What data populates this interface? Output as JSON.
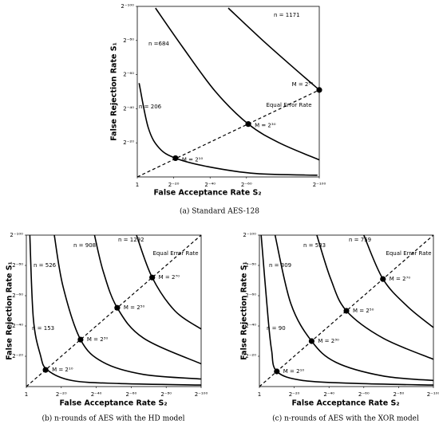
{
  "chart_data": [
    {
      "type": "line",
      "caption": "(a)  Standard AES-128",
      "xlabel": "False Acceptance Rate S₂",
      "ylabel": "False Rejection Rate S₁",
      "xlim": [
        0,
        -100
      ],
      "ylim": [
        0,
        -100
      ],
      "xticks": [
        {
          "value": 0,
          "label": "1"
        },
        {
          "value": -20,
          "label": "2⁻²⁰"
        },
        {
          "value": -40,
          "label": "2⁻⁴⁰"
        },
        {
          "value": -60,
          "label": "2⁻⁶⁰"
        },
        {
          "value": -100,
          "label": "2⁻¹⁰⁰"
        }
      ],
      "yticks": [
        {
          "value": -20,
          "label": "2⁻²⁰"
        },
        {
          "value": -40,
          "label": "2⁻⁴⁰"
        },
        {
          "value": -60,
          "label": "2⁻⁶⁰"
        },
        {
          "value": -80,
          "label": "2⁻⁸⁰"
        },
        {
          "value": -100,
          "label": "2⁻¹⁰⁰"
        }
      ],
      "series": [
        {
          "name": "n = 206",
          "color": "#000000",
          "x": [
            -1,
            -6,
            -12,
            -21,
            -39,
            -65,
            -99
          ],
          "y": [
            -55,
            -29,
            -17,
            -11,
            -6,
            -2,
            -1
          ]
        },
        {
          "name": "n =684",
          "color": "#000000",
          "x": [
            -10,
            -25,
            -43,
            -61,
            -78,
            -100
          ],
          "y": [
            -99,
            -76,
            -50,
            -31,
            -20,
            -10
          ]
        },
        {
          "name": "n = 1171",
          "color": "#000000",
          "x": [
            -50,
            -69,
            -87,
            -100
          ],
          "y": [
            -99,
            -80,
            -63,
            -51
          ]
        }
      ],
      "equal_error_line": {
        "label": "Equal Error Rate",
        "color": "#000000",
        "x": [
          0,
          -100
        ],
        "y": [
          0,
          -51
        ]
      },
      "markers": {
        "color": "#000000",
        "x": [
          -21,
          -61,
          -100
        ],
        "y": [
          -11,
          -31,
          -51
        ],
        "labels": [
          "M = 2¹⁰",
          "M = 2³⁰",
          "M = 2⁵⁰"
        ]
      }
    },
    {
      "type": "line",
      "caption": "(b)  n-rounds of AES with the HD model",
      "xlabel": "False Acceptance Rate S₂",
      "ylabel": "False Rejection Rate S₁",
      "xlim": [
        0,
        -100
      ],
      "ylim": [
        0,
        -100
      ],
      "xticks": [
        {
          "value": 0,
          "label": "1"
        },
        {
          "value": -20,
          "label": "2⁻²⁰"
        },
        {
          "value": -40,
          "label": "2⁻⁴⁰"
        },
        {
          "value": -60,
          "label": "2⁻⁶⁰"
        },
        {
          "value": -80,
          "label": "2⁻⁸⁰"
        },
        {
          "value": -100,
          "label": "2⁻¹⁰⁰"
        }
      ],
      "yticks": [
        {
          "value": -20,
          "label": "2⁻²⁰"
        },
        {
          "value": -40,
          "label": "2⁻⁴⁰"
        },
        {
          "value": -60,
          "label": "2⁻⁶⁰"
        },
        {
          "value": -80,
          "label": "2⁻⁸⁰"
        },
        {
          "value": -100,
          "label": "2⁻¹⁰⁰"
        }
      ],
      "series": [
        {
          "name": "n = 153",
          "color": "#000000",
          "x": [
            -2,
            -4,
            -8,
            -12,
            -26,
            -53,
            -100
          ],
          "y": [
            -100,
            -45,
            -21,
            -11,
            -4,
            -2,
            -1
          ]
        },
        {
          "name": "n = 526",
          "color": "#000000",
          "x": [
            -16,
            -21,
            -31,
            -44,
            -67,
            -100
          ],
          "y": [
            -100,
            -66,
            -31,
            -16,
            -8,
            -5
          ]
        },
        {
          "name": "n = 908",
          "color": "#000000",
          "x": [
            -39,
            -44,
            -52,
            -67,
            -100
          ],
          "y": [
            -100,
            -76,
            -52,
            -32,
            -15
          ]
        },
        {
          "name": "n = 1292",
          "color": "#000000",
          "x": [
            -63,
            -72,
            -85,
            -100
          ],
          "y": [
            -100,
            -72,
            -50,
            -38
          ]
        }
      ],
      "equal_error_line": {
        "label": "Equal Error Rate",
        "color": "#000000",
        "x": [
          0,
          -100
        ],
        "y": [
          0,
          -100
        ]
      },
      "markers": {
        "color": "#000000",
        "x": [
          -11,
          -31,
          -52,
          -72
        ],
        "y": [
          -11,
          -31,
          -52,
          -72
        ],
        "labels": [
          "M = 2¹⁰",
          "M = 2³⁰",
          "M = 2⁵⁰",
          "M = 2⁷⁰"
        ]
      }
    },
    {
      "type": "line",
      "caption": "(c)  n-rounds of AES with the XOR model",
      "xlabel": "False Acceptance Rate S₂",
      "ylabel": "False Rejection Rate S₁",
      "xlim": [
        0,
        -100
      ],
      "ylim": [
        0,
        -100
      ],
      "xticks": [
        {
          "value": 0,
          "label": "1"
        },
        {
          "value": -20,
          "label": "2⁻²⁰"
        },
        {
          "value": -40,
          "label": "2⁻⁴⁰"
        },
        {
          "value": -60,
          "label": "2⁻⁶⁰"
        },
        {
          "value": -80,
          "label": "2⁻⁸⁰"
        },
        {
          "value": -100,
          "label": "2⁻¹⁰⁰"
        }
      ],
      "yticks": [
        {
          "value": -20,
          "label": "2⁻²⁰"
        },
        {
          "value": -40,
          "label": "2⁻⁴⁰"
        },
        {
          "value": -60,
          "label": "2⁻⁶⁰"
        },
        {
          "value": -80,
          "label": "2⁻⁸⁰"
        },
        {
          "value": -100,
          "label": "2⁻¹⁰⁰"
        }
      ],
      "series": [
        {
          "name": "n = 90",
          "color": "#000000",
          "x": [
            -1,
            -5,
            -7,
            -10,
            -25,
            -57,
            -100
          ],
          "y": [
            -100,
            -45,
            -24,
            -10,
            -4,
            -2,
            -1
          ]
        },
        {
          "name": "n = 309",
          "color": "#000000",
          "x": [
            -9,
            -18,
            -30,
            -44,
            -71,
            -100
          ],
          "y": [
            -100,
            -55,
            -30,
            -16,
            -7,
            -4
          ]
        },
        {
          "name": "n = 533",
          "color": "#000000",
          "x": [
            -33,
            -41,
            -50,
            -71,
            -100
          ],
          "y": [
            -100,
            -71,
            -50,
            -32,
            -18
          ]
        },
        {
          "name": "n = 759",
          "color": "#000000",
          "x": [
            -60,
            -71,
            -85,
            -100
          ],
          "y": [
            -100,
            -71,
            -53,
            -39
          ]
        }
      ],
      "equal_error_line": {
        "label": "Equal Error Rate",
        "color": "#000000",
        "x": [
          0,
          -100
        ],
        "y": [
          0,
          -100
        ]
      },
      "markers": {
        "color": "#000000",
        "x": [
          -10,
          -30,
          -50,
          -71
        ],
        "y": [
          -10,
          -30,
          -50,
          -71
        ],
        "labels": [
          "M = 2¹⁰",
          "M = 2³⁰",
          "M = 2⁵⁰",
          "M = 2⁷⁰"
        ]
      }
    }
  ]
}
